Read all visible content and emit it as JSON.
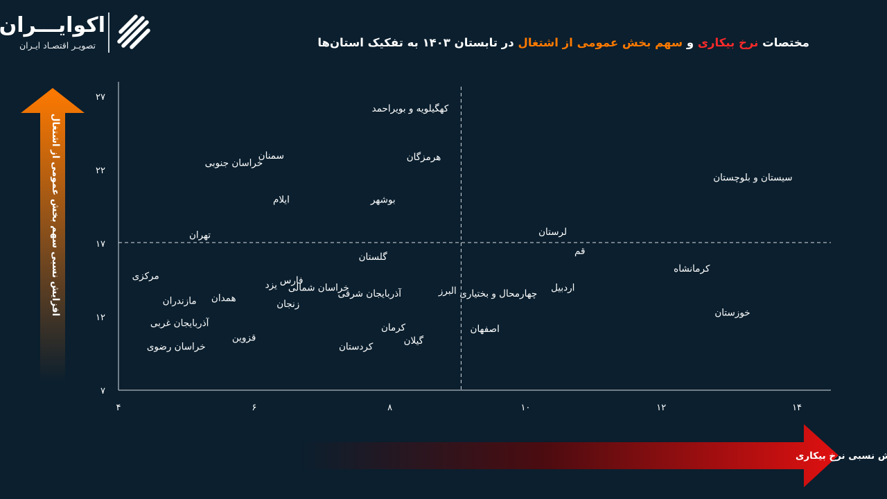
{
  "brand": {
    "name": "اکوایـــران",
    "tagline": "تصویـر اقتصـاد ایـران"
  },
  "title": {
    "part1": "مختصات",
    "part2": "نرخ بیکاری",
    "part3": "و",
    "part4": "سهم بخش عمومی از اشتغال",
    "part5": "در تابستان ۱۴۰۳ به تفکیک استان‌ها"
  },
  "colors": {
    "background": "#0b1f2e",
    "highlight_red": "#ff2a2a",
    "highlight_orange": "#ff7a00",
    "y_arrow_top": "#ff7a00",
    "x_arrow_right": "#e01010"
  },
  "chart_data": {
    "type": "scatter",
    "xlabel": "افزایش نسبی نرخ بیکاری",
    "ylabel": "افزایش نسبی سهم بخش عمومی از اشتغال",
    "xlim": [
      4,
      14.5
    ],
    "ylim": [
      7,
      28
    ],
    "x_ticks": [
      4,
      6,
      8,
      10,
      12,
      14
    ],
    "x_tick_labels": [
      "۴",
      "۶",
      "۸",
      "۱۰",
      "۱۲",
      "۱۴"
    ],
    "y_ticks": [
      7,
      12,
      17,
      22,
      27
    ],
    "y_tick_labels": [
      "۷",
      "۱۲",
      "۱۷",
      "۲۲",
      "۲۷"
    ],
    "reference_lines": {
      "x": 9.05,
      "y": 17.05
    },
    "grid": false,
    "points": [
      {
        "name": "کهگیلویه و بویراحمد",
        "x": 8.3,
        "y": 26.2
      },
      {
        "name": "سمنان",
        "x": 6.25,
        "y": 23.0
      },
      {
        "name": "هرمزگان",
        "x": 8.5,
        "y": 22.9
      },
      {
        "name": "خراسان جنوبی",
        "x": 5.7,
        "y": 22.5
      },
      {
        "name": "سیستان و بلوچستان",
        "x": 13.35,
        "y": 21.5
      },
      {
        "name": "ایلام",
        "x": 6.4,
        "y": 20.0
      },
      {
        "name": "بوشهر",
        "x": 7.9,
        "y": 20.0
      },
      {
        "name": "لرستان",
        "x": 10.4,
        "y": 17.8
      },
      {
        "name": "تهران",
        "x": 5.2,
        "y": 17.6
      },
      {
        "name": "قم",
        "x": 10.8,
        "y": 16.5
      },
      {
        "name": "گلستان",
        "x": 7.75,
        "y": 16.1
      },
      {
        "name": "کرمانشاه",
        "x": 12.45,
        "y": 15.3
      },
      {
        "name": "مرکزی",
        "x": 4.4,
        "y": 14.8
      },
      {
        "name": "فارس",
        "x": 6.55,
        "y": 14.5
      },
      {
        "name": "خراسان شمالی",
        "x": 6.95,
        "y": 14.0
      },
      {
        "name": "یزد",
        "x": 6.25,
        "y": 14.2
      },
      {
        "name": "آذربایجان شرقی",
        "x": 7.7,
        "y": 13.6
      },
      {
        "name": "البرز",
        "x": 8.85,
        "y": 13.8
      },
      {
        "name": "چهارمحال و بختیاری",
        "x": 9.6,
        "y": 13.6
      },
      {
        "name": "اردبیل",
        "x": 10.55,
        "y": 14.0
      },
      {
        "name": "همدان",
        "x": 5.55,
        "y": 13.3
      },
      {
        "name": "مازندران",
        "x": 4.9,
        "y": 13.1
      },
      {
        "name": "زنجان",
        "x": 6.5,
        "y": 12.9
      },
      {
        "name": "خوزستان",
        "x": 13.05,
        "y": 12.3
      },
      {
        "name": "آذربایجان غربی",
        "x": 4.9,
        "y": 11.6
      },
      {
        "name": "کرمان",
        "x": 8.05,
        "y": 11.3
      },
      {
        "name": "اصفهان",
        "x": 9.4,
        "y": 11.2
      },
      {
        "name": "قزوین",
        "x": 5.85,
        "y": 10.6
      },
      {
        "name": "گیلان",
        "x": 8.35,
        "y": 10.4
      },
      {
        "name": "خراسان رضوی",
        "x": 4.85,
        "y": 10.0
      },
      {
        "name": "کردستان",
        "x": 7.5,
        "y": 10.0
      }
    ]
  }
}
